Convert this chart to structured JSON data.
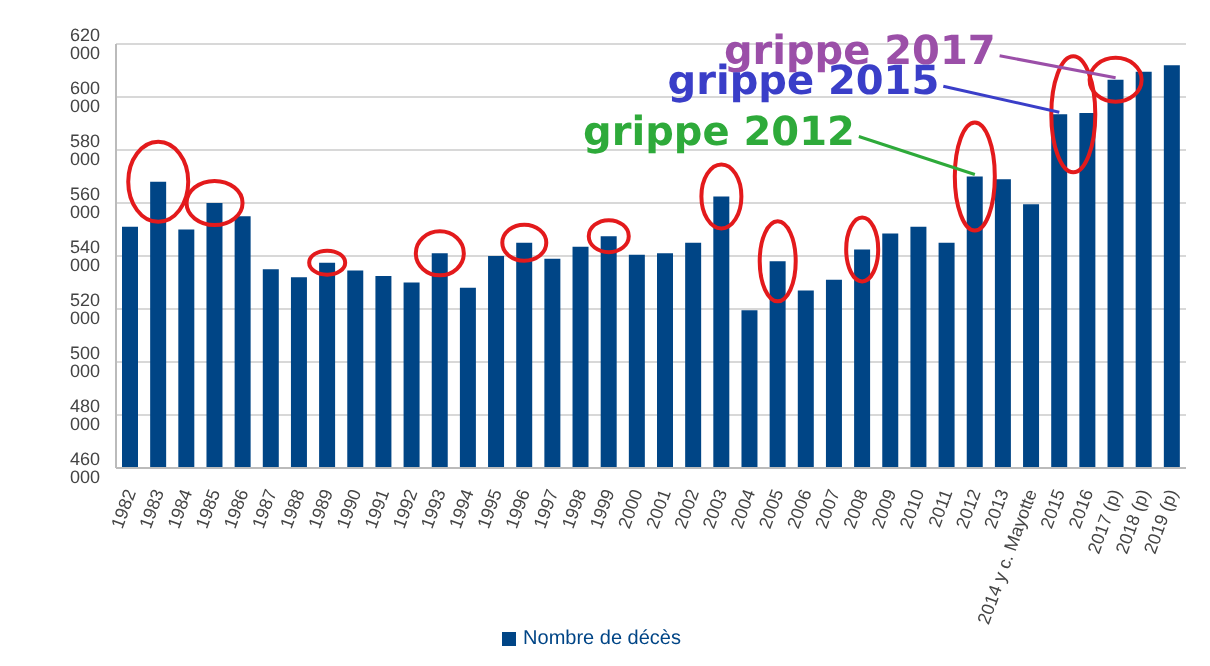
{
  "chart_data": {
    "type": "bar",
    "categories": [
      "1982",
      "1983",
      "1984",
      "1985",
      "1986",
      "1987",
      "1988",
      "1989",
      "1990",
      "1991",
      "1992",
      "1993",
      "1994",
      "1995",
      "1996",
      "1997",
      "1998",
      "1999",
      "2000",
      "2001",
      "2002",
      "2003",
      "2004",
      "2005",
      "2006",
      "2007",
      "2008",
      "2009",
      "2010",
      "2011",
      "2012",
      "2013",
      "2014 y c. Mayotte",
      "2015",
      "2016",
      "2017 (p)",
      "2018 (p)",
      "2019 (p)"
    ],
    "series": [
      {
        "name": "Nombre de décès",
        "color": "#004586",
        "values": [
          551000,
          568000,
          550000,
          560000,
          555000,
          535000,
          532000,
          537500,
          534500,
          532500,
          530000,
          541000,
          528000,
          540000,
          545000,
          539000,
          543500,
          547500,
          540500,
          541000,
          545000,
          562500,
          519500,
          538000,
          527000,
          531000,
          542500,
          548500,
          551000,
          545000,
          570000,
          569000,
          559500,
          593500,
          594000,
          606500,
          609500,
          612000
        ]
      }
    ],
    "ylim": [
      460000,
      620000
    ],
    "yticks": [
      {
        "value": 460000,
        "label": "460 000"
      },
      {
        "value": 480000,
        "label": "480 000"
      },
      {
        "value": 500000,
        "label": "500 000"
      },
      {
        "value": 520000,
        "label": "520 000"
      },
      {
        "value": 540000,
        "label": "540 000"
      },
      {
        "value": 560000,
        "label": "560 000"
      },
      {
        "value": 580000,
        "label": "580 000"
      },
      {
        "value": 600000,
        "label": "600 000"
      },
      {
        "value": 620000,
        "label": "620 000"
      }
    ],
    "grid": "y",
    "legend": "bottom",
    "annotations": [
      {
        "text": "grippe 2017",
        "x": "2017 (p)",
        "y": 606500
      },
      {
        "text": "grippe 2015",
        "x": "2015",
        "y": 593500
      },
      {
        "text": "grippe 2012",
        "x": "2012",
        "y": 570000
      }
    ]
  }
}
